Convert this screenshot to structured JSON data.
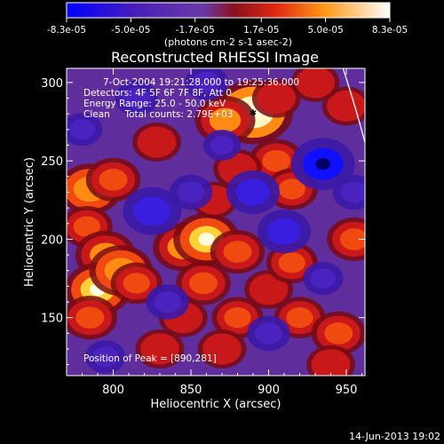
{
  "chart_data": {
    "type": "heatmap",
    "title": "Reconstructed RHESSI Image",
    "xlabel": "Heliocentric X (arcsec)",
    "ylabel": "Heliocentric Y (arcsec)",
    "xlim": [
      770,
      962
    ],
    "ylim": [
      113,
      309
    ],
    "x_ticks": [
      800,
      850,
      900,
      950
    ],
    "y_ticks": [
      150,
      200,
      250,
      300
    ],
    "colorbar": {
      "tick_labels": [
        "-8.3e-05",
        "-5.0e-05",
        "-1.7e-05",
        "1.7e-05",
        "5.0e-05",
        "8.3e-05"
      ],
      "tick_values": [
        -8.3e-05,
        -5e-05,
        -1.7e-05,
        1.7e-05,
        5e-05,
        8.3e-05
      ],
      "range": [
        -8.3e-05,
        8.3e-05
      ],
      "units_text": "(photons cm-2 s-1 asec-2)"
    },
    "annotations": [
      "7-Oct-2004 19:21:28.000 to 19:25:36.000",
      "Detectors: 4F 5F 6F 7F 8F, Att 0",
      "Energy Range: 25.0 - 50.0 keV",
      "Clean     Total counts: 2.79E+03"
    ],
    "peak_label": "Position of Peak = [890,281]",
    "peak": [
      890,
      281
    ],
    "limb_color": "#ffffff",
    "colormap": [
      "#0000ff",
      "#6633cc",
      "#5a2ca0",
      "#cc1a1a",
      "#ff6600",
      "#ffdd33",
      "#ffffdd"
    ],
    "features": [
      {
        "x": 890,
        "y": 281,
        "v": 8.3e-05
      },
      {
        "x": 872,
        "y": 276,
        "v": 5e-05
      },
      {
        "x": 905,
        "y": 290,
        "v": 3e-05
      },
      {
        "x": 785,
        "y": 232,
        "v": 5.5e-05
      },
      {
        "x": 800,
        "y": 238,
        "v": 4e-05
      },
      {
        "x": 783,
        "y": 208,
        "v": 3.5e-05
      },
      {
        "x": 795,
        "y": 190,
        "v": 5e-05
      },
      {
        "x": 790,
        "y": 168,
        "v": 6e-05
      },
      {
        "x": 805,
        "y": 180,
        "v": 5.5e-05
      },
      {
        "x": 785,
        "y": 150,
        "v": 4e-05
      },
      {
        "x": 815,
        "y": 172,
        "v": 3.5e-05
      },
      {
        "x": 845,
        "y": 195,
        "v": 5e-05
      },
      {
        "x": 860,
        "y": 200,
        "v": 6e-05
      },
      {
        "x": 880,
        "y": 192,
        "v": 4e-05
      },
      {
        "x": 858,
        "y": 172,
        "v": 4e-05
      },
      {
        "x": 845,
        "y": 150,
        "v": 3e-05
      },
      {
        "x": 880,
        "y": 150,
        "v": 3.5e-05
      },
      {
        "x": 870,
        "y": 130,
        "v": 3e-05
      },
      {
        "x": 830,
        "y": 130,
        "v": 3e-05
      },
      {
        "x": 900,
        "y": 168,
        "v": 3e-05
      },
      {
        "x": 915,
        "y": 185,
        "v": 3.5e-05
      },
      {
        "x": 920,
        "y": 150,
        "v": 3.5e-05
      },
      {
        "x": 945,
        "y": 140,
        "v": 4e-05
      },
      {
        "x": 940,
        "y": 120,
        "v": 3e-05
      },
      {
        "x": 905,
        "y": 250,
        "v": 4e-05
      },
      {
        "x": 880,
        "y": 245,
        "v": 3e-05
      },
      {
        "x": 915,
        "y": 232,
        "v": 3.5e-05
      },
      {
        "x": 828,
        "y": 262,
        "v": 3e-05
      },
      {
        "x": 955,
        "y": 200,
        "v": 4e-05
      },
      {
        "x": 950,
        "y": 285,
        "v": 3e-05
      },
      {
        "x": 930,
        "y": 300,
        "v": 3e-05
      },
      {
        "x": 865,
        "y": 225,
        "v": 2.5e-05
      },
      {
        "x": 935,
        "y": 248,
        "v": -7e-05
      },
      {
        "x": 825,
        "y": 218,
        "v": -6e-05
      },
      {
        "x": 890,
        "y": 230,
        "v": -5e-05
      },
      {
        "x": 910,
        "y": 205,
        "v": -5e-05
      },
      {
        "x": 815,
        "y": 290,
        "v": -3e-05
      },
      {
        "x": 850,
        "y": 230,
        "v": -3e-05
      },
      {
        "x": 835,
        "y": 160,
        "v": -3e-05
      },
      {
        "x": 900,
        "y": 140,
        "v": -3e-05
      },
      {
        "x": 955,
        "y": 230,
        "v": -3e-05
      },
      {
        "x": 795,
        "y": 125,
        "v": -2.5e-05
      },
      {
        "x": 860,
        "y": 300,
        "v": -3e-05
      },
      {
        "x": 935,
        "y": 175,
        "v": -2.5e-05
      },
      {
        "x": 780,
        "y": 270,
        "v": -2.5e-05
      },
      {
        "x": 870,
        "y": 260,
        "v": -2e-05
      }
    ]
  },
  "footer": {
    "date": "14-Jun-2013 19:02"
  }
}
